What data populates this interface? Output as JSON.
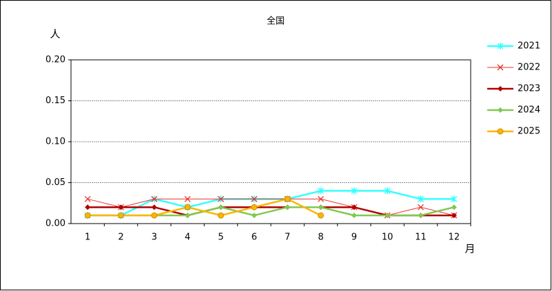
{
  "chart_data": {
    "type": "line",
    "title": "全国",
    "ylabel": "人",
    "xlabel": "月",
    "categories": [
      "1",
      "2",
      "3",
      "4",
      "5",
      "6",
      "7",
      "8",
      "9",
      "10",
      "11",
      "12"
    ],
    "series": [
      {
        "name": "2021",
        "color": "#33ffff",
        "marker": "asterisk",
        "line_width": 2.5,
        "values": [
          0.01,
          0.01,
          0.03,
          0.02,
          0.03,
          0.03,
          0.03,
          0.04,
          0.04,
          0.04,
          0.03,
          0.03
        ]
      },
      {
        "name": "2022",
        "color": "#e8312a",
        "marker": "cross",
        "line_width": 1,
        "values": [
          0.03,
          0.02,
          0.03,
          0.03,
          0.03,
          0.03,
          0.03,
          0.03,
          0.02,
          0.01,
          0.02,
          0.01
        ]
      },
      {
        "name": "2023",
        "color": "#b00000",
        "marker": "diamond",
        "line_width": 2.5,
        "values": [
          0.02,
          0.02,
          0.02,
          0.01,
          0.02,
          0.02,
          0.02,
          0.02,
          0.02,
          0.01,
          0.01,
          0.01
        ]
      },
      {
        "name": "2024",
        "color": "#80c850",
        "marker": "diamond",
        "line_width": 2.5,
        "values": [
          0.01,
          0.01,
          0.01,
          0.01,
          0.02,
          0.01,
          0.02,
          0.02,
          0.01,
          0.01,
          0.01,
          0.02
        ]
      },
      {
        "name": "2025",
        "color": "#ffb400",
        "marker": "circle",
        "line_width": 2.5,
        "values": [
          0.01,
          0.01,
          0.01,
          0.02,
          0.01,
          0.02,
          0.03,
          0.01,
          null,
          null,
          null,
          null
        ]
      }
    ],
    "ylim": [
      0,
      0.2
    ],
    "yticks": [
      {
        "value": 0,
        "label": "0.00"
      },
      {
        "value": 0.05,
        "label": "0.05"
      },
      {
        "value": 0.1,
        "label": "0.10"
      },
      {
        "value": 0.15,
        "label": "0.15"
      },
      {
        "value": 0.2,
        "label": "0.20"
      }
    ],
    "grid": true,
    "legend": "right"
  }
}
